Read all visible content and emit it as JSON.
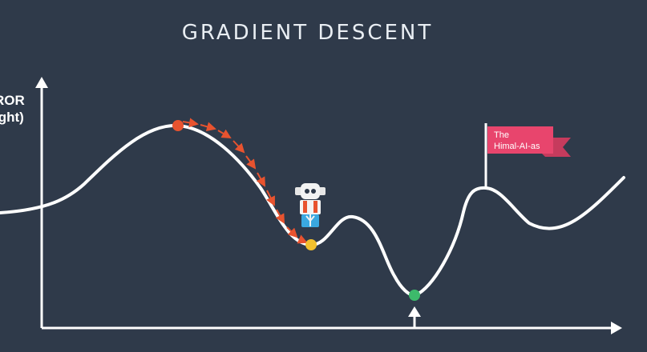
{
  "title": "GRADIENT DESCENT",
  "y_axis_label": "ROR\night)",
  "flag": {
    "line1": "The",
    "line2": "Himal-AI-as"
  },
  "colors": {
    "background": "#2f3a4a",
    "curve": "#ffffff",
    "start_point": "#e8532f",
    "local_min_point": "#f2c12e",
    "global_min_point": "#3dba6b",
    "flag": "#e8456d",
    "path_arrows": "#e8532f"
  },
  "icons": {
    "climber": "robot-hiker-icon",
    "flag": "flag-icon",
    "target_arrow": "up-arrow-icon"
  }
}
